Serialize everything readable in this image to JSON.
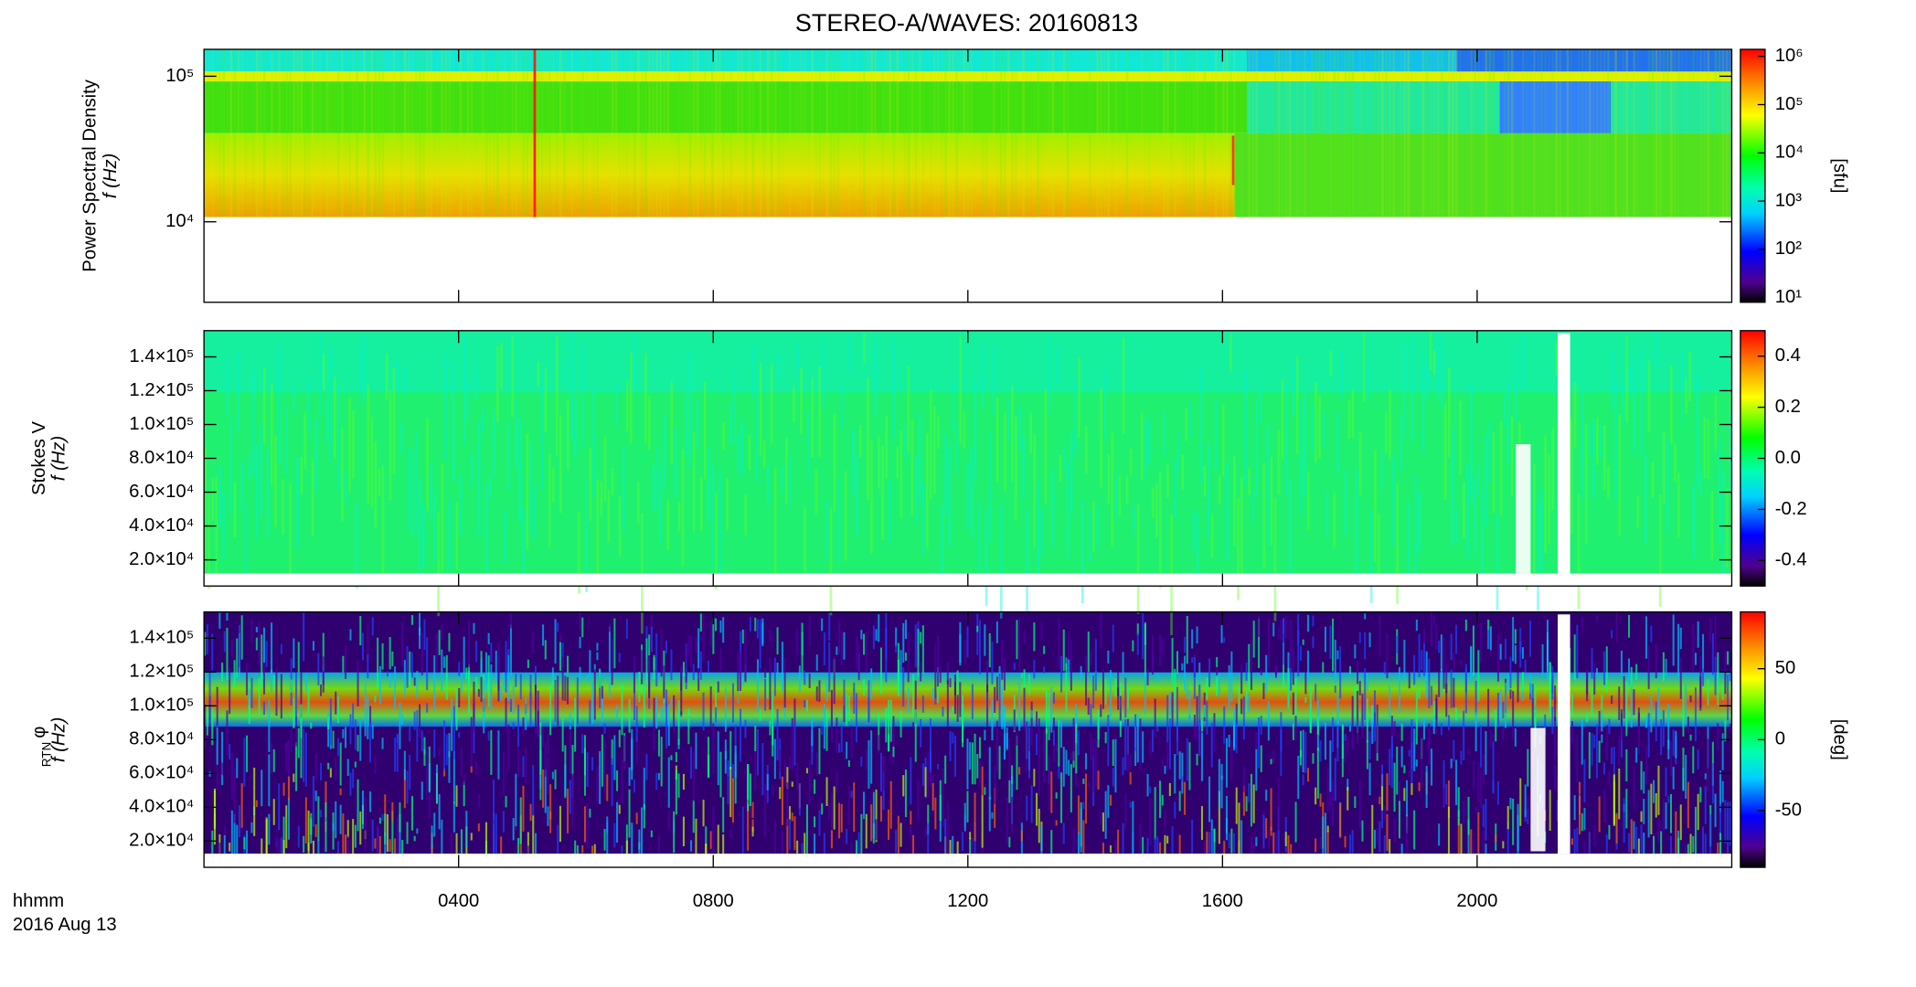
{
  "title": "STEREO-A/WAVES: 20160813",
  "chart_data": [
    {
      "type": "heatmap",
      "quantity": "Power Spectral Density",
      "ylabel": "f (Hz)",
      "ylog": true,
      "ylim": [
        2800,
        153000
      ],
      "yticks": [
        {
          "value": 10000,
          "label": "10⁴"
        },
        {
          "value": 100000,
          "label": "10⁵"
        }
      ],
      "zlog": true,
      "zlim": [
        8,
        1400000
      ],
      "zticks": [
        {
          "value": 1000000,
          "label": "10⁶"
        },
        {
          "value": 100000,
          "label": "10⁵"
        },
        {
          "value": 10000,
          "label": "10⁴"
        },
        {
          "value": 1000,
          "label": "10³"
        },
        {
          "value": 100,
          "label": "10²"
        },
        {
          "value": 10,
          "label": "10¹"
        }
      ],
      "zlabel": "[sfu]"
    },
    {
      "type": "heatmap",
      "quantity": "Stokes V",
      "ylabel": "f (Hz)",
      "ylog": false,
      "ylim": [
        4500,
        155500
      ],
      "yticks": [
        {
          "value": 20000,
          "label": "2.0×10⁴"
        },
        {
          "value": 40000,
          "label": "4.0×10⁴"
        },
        {
          "value": 60000,
          "label": "6.0×10⁴"
        },
        {
          "value": 80000,
          "label": "8.0×10⁴"
        },
        {
          "value": 100000,
          "label": "1.0×10⁵"
        },
        {
          "value": 120000,
          "label": "1.2×10⁵"
        },
        {
          "value": 140000,
          "label": "1.4×10⁵"
        }
      ],
      "zlog": false,
      "zlim": [
        -0.5,
        0.5
      ],
      "zticks": [
        0.4,
        0.2,
        {
          "value": 0,
          "label": "0.0"
        },
        -0.2,
        -0.4
      ]
    },
    {
      "type": "heatmap",
      "quantity": "φ",
      "quantity_subscript": "RTN",
      "ylabel": "f (Hz)",
      "ylog": false,
      "ylim": [
        4500,
        155500
      ],
      "yticks": [
        {
          "value": 20000,
          "label": "2.0×10⁴"
        },
        {
          "value": 40000,
          "label": "4.0×10⁴"
        },
        {
          "value": 60000,
          "label": "6.0×10⁴"
        },
        {
          "value": 80000,
          "label": "8.0×10⁴"
        },
        {
          "value": 100000,
          "label": "1.0×10⁵"
        },
        {
          "value": 120000,
          "label": "1.2×10⁵"
        },
        {
          "value": 140000,
          "label": "1.4×10⁵"
        }
      ],
      "zlog": false,
      "zlim": [
        -90,
        90
      ],
      "zticks": [
        50,
        0,
        -50
      ],
      "zlabel": "[deg]",
      "xlim": [
        0,
        24
      ],
      "xticks": [
        {
          "value": 4,
          "label": "0400"
        },
        {
          "value": 8,
          "label": "0800"
        },
        {
          "value": 12,
          "label": "1200"
        },
        {
          "value": 16,
          "label": "1600"
        },
        {
          "value": 20,
          "label": "2000"
        }
      ],
      "xlabel": "hhmm",
      "date": "2016 Aug 13"
    }
  ]
}
